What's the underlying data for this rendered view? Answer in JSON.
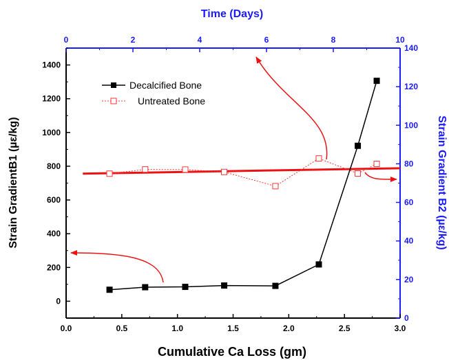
{
  "chart_data": {
    "type": "scatter",
    "xlabel": "Cumulative Ca Loss (gm)",
    "ylabel": "Strain GradientB1 (µε/kg)",
    "x2label": "Time (Days)",
    "y2label": "Strain Gradient B2 (µε/kg)",
    "xlim": [
      0,
      3.0
    ],
    "ylim": [
      -100,
      1500
    ],
    "x2lim": [
      0,
      10
    ],
    "y2lim": [
      0,
      140
    ],
    "x_ticks": [
      "0.0",
      "0.5",
      "1.0",
      "1.5",
      "2.0",
      "2.5",
      "3.0"
    ],
    "y_ticks": [
      "0",
      "200",
      "400",
      "600",
      "800",
      "1000",
      "1200",
      "1400"
    ],
    "x2_ticks": [
      "0",
      "2",
      "4",
      "6",
      "8",
      "10"
    ],
    "y2_ticks": [
      "0",
      "20",
      "40",
      "60",
      "80",
      "100",
      "120",
      "140"
    ],
    "grid": false,
    "legend_position": "top-left",
    "series": [
      {
        "name": "Decalcified Bone",
        "color": "#000000",
        "marker": "filled-square",
        "line": "solid",
        "x": [
          0.39,
          0.71,
          1.07,
          1.42,
          1.88,
          2.27,
          2.62,
          2.79
        ],
        "y": [
          68,
          83,
          85,
          93,
          91,
          218,
          921,
          1306
        ]
      },
      {
        "name": "Untreated Bone",
        "color": "#ff3333",
        "marker": "open-square",
        "line": "dotted",
        "x": [
          0.39,
          0.71,
          1.07,
          1.42,
          1.88,
          2.27,
          2.62,
          2.79
        ],
        "y": [
          756,
          781,
          780,
          766,
          682,
          846,
          757,
          814
        ]
      }
    ],
    "fit_line": {
      "color": "#ee1111",
      "x": [
        0.15,
        3.0
      ],
      "y": [
        756,
        788
      ]
    },
    "annotations": [
      {
        "type": "arrow",
        "color": "#ee1111",
        "points_to": "left axis"
      },
      {
        "type": "arrow",
        "color": "#ee1111",
        "points_to": "top axis"
      },
      {
        "type": "arrow",
        "color": "#ee1111",
        "points_to": "right axis"
      }
    ]
  }
}
